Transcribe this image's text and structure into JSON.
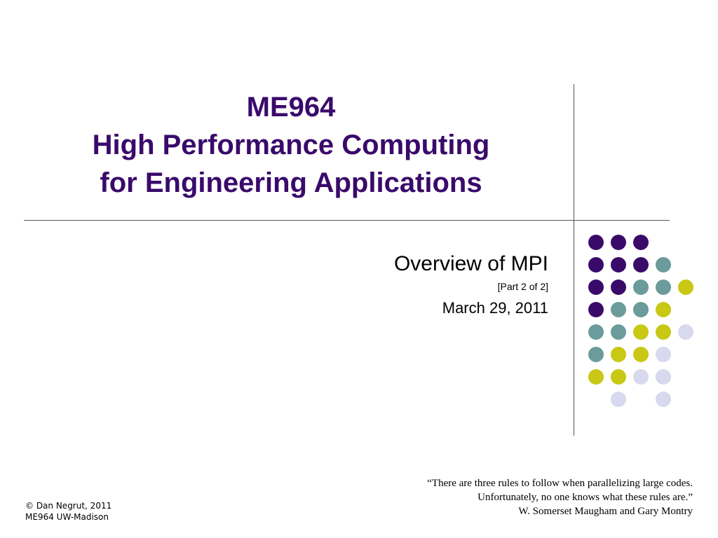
{
  "slide": {
    "title_lines": [
      "ME964",
      "High Performance Computing",
      "for Engineering Applications"
    ],
    "subtitle": "Overview of MPI",
    "part": "[Part 2 of 2]",
    "date": "March 29, 2011",
    "quote_lines": [
      "“There are three rules to follow when parallelizing large codes.",
      "Unfortunately, no one knows what these rules are.”",
      "W. Somerset Maugham and Gary Montry"
    ],
    "footer_lines": [
      "© Dan Negrut, 2011",
      "ME964 UW-Madison"
    ]
  },
  "colors": {
    "title": "#3a0a6b",
    "purple": "#3a0a6b",
    "teal": "#6b9b9b",
    "olive": "#c8c815",
    "lavender": "#d8d8ee"
  },
  "decoration": {
    "dot_grid": [
      [
        "purple",
        "purple",
        "purple",
        null,
        null
      ],
      [
        "purple",
        "purple",
        "purple",
        "teal",
        null
      ],
      [
        "purple",
        "purple",
        "teal",
        "teal",
        "olive"
      ],
      [
        "purple",
        "teal",
        "teal",
        "olive",
        null
      ],
      [
        "teal",
        "teal",
        "olive",
        "olive",
        "lavender"
      ],
      [
        "teal",
        "olive",
        "olive",
        "lavender",
        null
      ],
      [
        "olive",
        "olive",
        "lavender",
        "lavender",
        null
      ],
      [
        null,
        "lavender",
        null,
        "lavender",
        null
      ]
    ]
  }
}
